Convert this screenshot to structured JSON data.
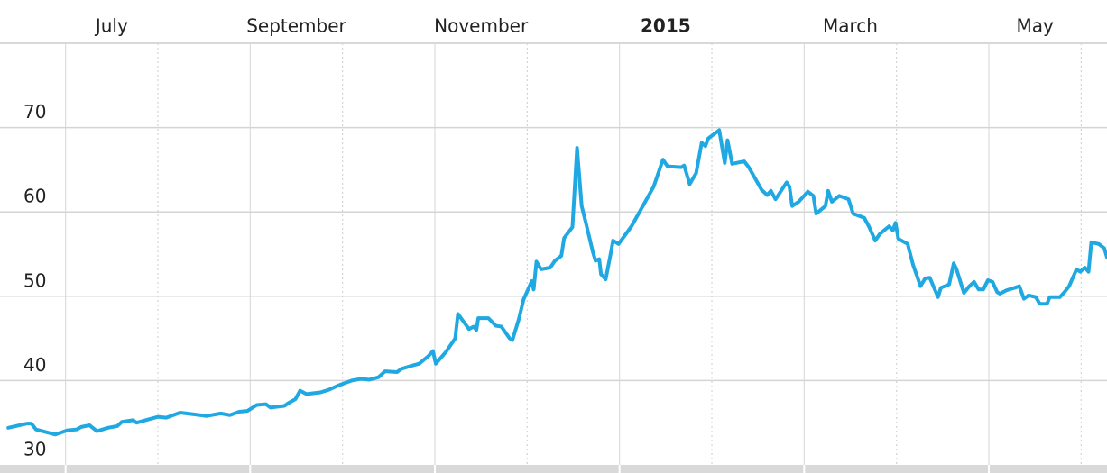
{
  "chart_data": {
    "type": "line",
    "color": "#1fa8e1",
    "xlim": [
      -0.71,
      11.28
    ],
    "ylim": [
      30,
      80
    ],
    "yticks": [
      30,
      40,
      50,
      60,
      70
    ],
    "xticks": [
      {
        "value": 0,
        "label": "July"
      },
      {
        "value": 2,
        "label": "September"
      },
      {
        "value": 4,
        "label": "November"
      },
      {
        "value": 6,
        "label": "2015",
        "bold": true
      },
      {
        "value": 8,
        "label": "March"
      },
      {
        "value": 10,
        "label": "May"
      }
    ],
    "xminor": [
      1,
      3,
      5,
      7,
      9,
      11
    ],
    "grid": true,
    "x": [
      -0.62,
      -0.42,
      -0.37,
      -0.32,
      -0.11,
      0.02,
      0.12,
      0.17,
      0.26,
      0.34,
      0.46,
      0.56,
      0.61,
      0.73,
      0.77,
      0.9,
      1.0,
      1.09,
      1.24,
      1.39,
      1.53,
      1.68,
      1.78,
      1.88,
      1.97,
      2.07,
      2.17,
      2.22,
      2.37,
      2.41,
      2.49,
      2.54,
      2.61,
      2.76,
      2.85,
      2.95,
      3.1,
      3.2,
      3.29,
      3.39,
      3.46,
      3.59,
      3.64,
      3.73,
      3.83,
      3.93,
      3.98,
      4.01,
      4.12,
      4.22,
      4.25,
      4.37,
      4.42,
      4.45,
      4.47,
      4.58,
      4.66,
      4.72,
      4.81,
      4.84,
      4.91,
      4.96,
      5.05,
      5.07,
      5.1,
      5.15,
      5.25,
      5.3,
      5.37,
      5.4,
      5.49,
      5.54,
      5.59,
      5.64,
      5.71,
      5.74,
      5.78,
      5.8,
      5.85,
      5.9,
      5.93,
      5.99,
      6.13,
      6.37,
      6.47,
      6.52,
      6.67,
      6.7,
      6.76,
      6.83,
      6.89,
      6.93,
      6.96,
      7.08,
      7.14,
      7.17,
      7.22,
      7.35,
      7.4,
      7.54,
      7.6,
      7.64,
      7.69,
      7.81,
      7.84,
      7.87,
      7.94,
      8.04,
      8.1,
      8.13,
      8.23,
      8.26,
      8.3,
      8.38,
      8.48,
      8.53,
      8.65,
      8.7,
      8.77,
      8.82,
      8.92,
      8.96,
      8.99,
      9.02,
      9.12,
      9.18,
      9.26,
      9.31,
      9.36,
      9.45,
      9.48,
      9.57,
      9.62,
      9.65,
      9.73,
      9.79,
      9.84,
      9.89,
      9.94,
      9.99,
      10.04,
      10.09,
      10.12,
      10.19,
      10.28,
      10.33,
      10.38,
      10.43,
      10.51,
      10.55,
      10.63,
      10.66,
      10.77,
      10.82,
      10.87,
      10.95,
      10.99,
      11.04,
      11.08,
      11.11,
      11.19,
      11.25,
      11.28
    ],
    "values": [
      34.4,
      34.9,
      34.9,
      34.2,
      33.6,
      34.1,
      34.2,
      34.5,
      34.7,
      34.0,
      34.4,
      34.6,
      35.1,
      35.3,
      35.0,
      35.4,
      35.7,
      35.6,
      36.2,
      36.0,
      35.8,
      36.1,
      35.9,
      36.3,
      36.4,
      37.1,
      37.2,
      36.8,
      37.0,
      37.3,
      37.8,
      38.8,
      38.4,
      38.6,
      38.9,
      39.4,
      40.0,
      40.2,
      40.1,
      40.4,
      41.1,
      41.0,
      41.4,
      41.7,
      42.0,
      42.9,
      43.5,
      42.0,
      43.4,
      45.0,
      47.9,
      46.1,
      46.4,
      46.0,
      47.4,
      47.4,
      46.5,
      46.4,
      45.0,
      44.8,
      47.3,
      49.6,
      51.8,
      50.8,
      54.1,
      53.2,
      53.4,
      54.2,
      54.8,
      56.9,
      58.2,
      67.6,
      60.7,
      58.5,
      55.3,
      54.2,
      54.4,
      52.6,
      52.0,
      54.8,
      56.6,
      56.2,
      58.3,
      63.0,
      66.2,
      65.4,
      65.3,
      65.5,
      63.3,
      64.6,
      68.2,
      67.8,
      68.7,
      69.7,
      65.8,
      68.5,
      65.7,
      66.0,
      65.3,
      62.6,
      62.0,
      62.5,
      61.5,
      63.5,
      63.0,
      60.7,
      61.2,
      62.4,
      61.9,
      59.8,
      60.7,
      62.5,
      61.2,
      61.9,
      61.5,
      59.8,
      59.3,
      58.3,
      56.6,
      57.4,
      58.3,
      57.8,
      58.7,
      56.8,
      56.2,
      53.7,
      51.2,
      52.1,
      52.2,
      49.9,
      51.0,
      51.4,
      53.9,
      53.2,
      50.4,
      51.2,
      51.7,
      50.8,
      50.8,
      51.9,
      51.7,
      50.5,
      50.3,
      50.7,
      51.0,
      51.2,
      49.7,
      50.1,
      49.9,
      49.1,
      49.1,
      49.9,
      49.9,
      50.5,
      51.2,
      53.2,
      52.9,
      53.4,
      52.9,
      56.4,
      56.2,
      55.7,
      54.6
    ]
  }
}
